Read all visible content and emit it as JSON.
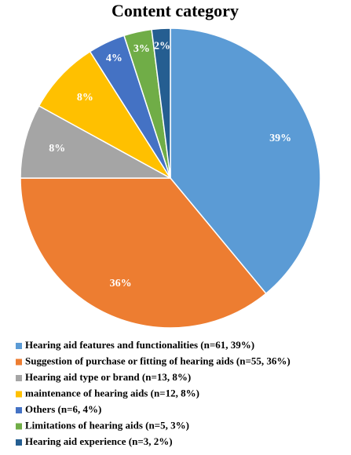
{
  "chart_data": {
    "type": "pie",
    "title": "Content category",
    "categories": [
      "Hearing aid features and functionalities (n=61, 39%)",
      "Suggestion of purchase or fitting of hearing aids (n=55, 36%)",
      "Hearing aid type or brand (n=13, 8%)",
      "maintenance of hearing aids (n=12, 8%)",
      "Others (n=6, 4%)",
      "Limitations of hearing aids (n=5, 3%)",
      "Hearing aid experience (n=3, 2%)"
    ],
    "values": [
      39,
      36,
      8,
      8,
      4,
      3,
      2
    ],
    "value_labels": [
      "39%",
      "36%",
      "8%",
      "8%",
      "4%",
      "3%",
      "2%"
    ],
    "colors": [
      "#5b9bd5",
      "#ed7d31",
      "#a5a5a5",
      "#ffc000",
      "#4472c4",
      "#70ad47",
      "#255e91"
    ]
  }
}
